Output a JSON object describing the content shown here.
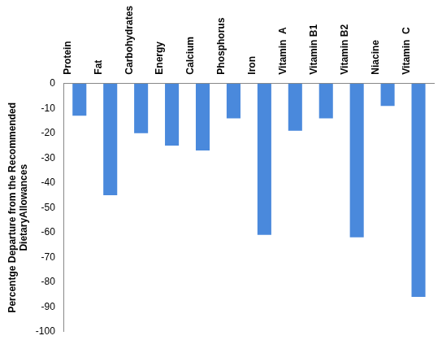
{
  "chart_data": {
    "type": "bar",
    "y_label": [
      "Percentge Departure from the Recommended",
      "DietaryAllowances"
    ],
    "categories": [
      "Protein",
      "Fat",
      "Carbohydrates",
      "Energy",
      "Calcium",
      "Phosphorus",
      "Iron",
      "Vitamin  A",
      "Vitamin B1",
      "Vitamin B2",
      "Niacine",
      "Vitamin  C"
    ],
    "values": [
      -13,
      -45,
      -20,
      -25,
      -27,
      -14,
      -61,
      -19,
      -14,
      -62,
      -9,
      -86
    ],
    "color": "#4a89dc",
    "ylim": [
      -100,
      0
    ],
    "yticks": [
      -100,
      -90,
      -80,
      -70,
      -60,
      -50,
      -40,
      -30,
      -20,
      -10,
      0
    ],
    "grid": false
  }
}
